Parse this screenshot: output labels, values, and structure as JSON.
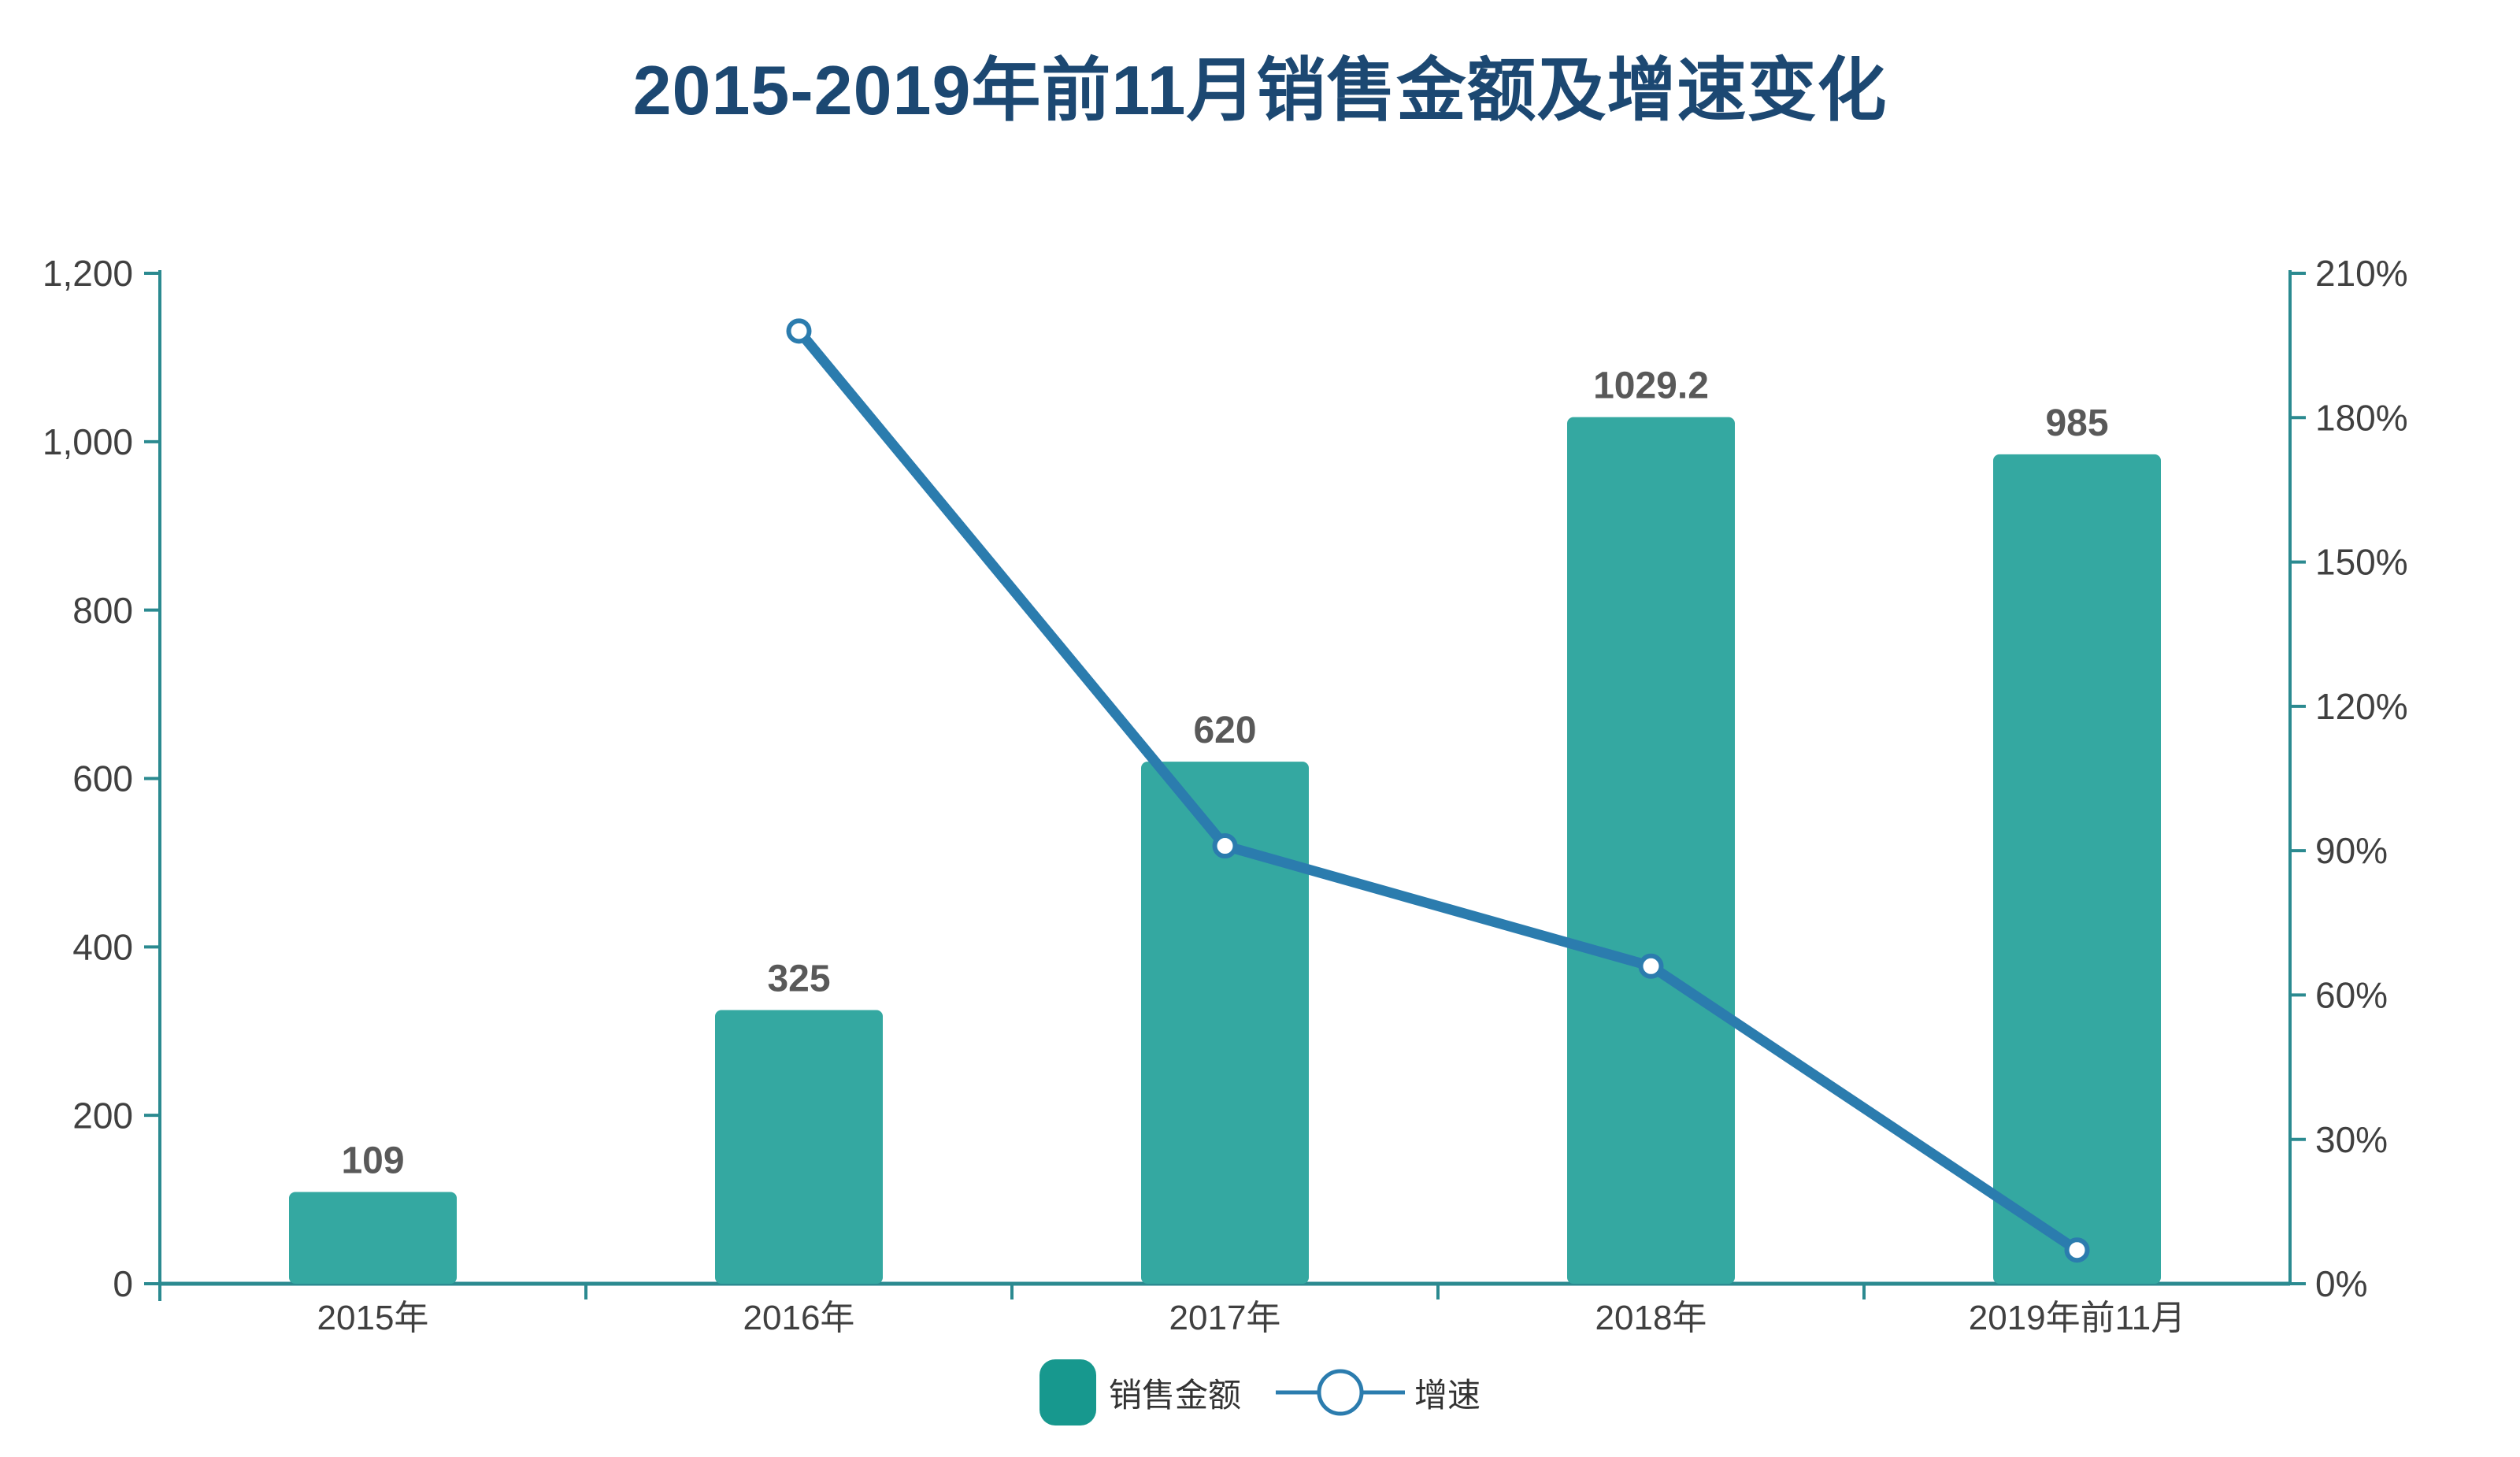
{
  "title": "2015-2019年前11月销售金额及增速变化",
  "legend": {
    "bar_label": "销售金额",
    "line_label": "增速"
  },
  "colors": {
    "title": "#1c4872",
    "axis_line": "#2b8a90",
    "axis_text": "#404040",
    "bar_fill": "#34a8a1",
    "bar_value_label": "#595959",
    "line_stroke": "#2b7cae",
    "marker_fill": "#ffffff",
    "legend_swatch": "#17988e",
    "legend_text": "#333333"
  },
  "chart_data": {
    "type": "bar",
    "combo": "bar+line",
    "title": "2015-2019年前11月销售金额及增速变化",
    "categories": [
      "2015年",
      "2016年",
      "2017年",
      "2018年",
      "2019年前11月"
    ],
    "series": [
      {
        "name": "销售金额",
        "type": "bar",
        "axis": "left",
        "values": [
          109,
          325,
          620,
          1029.2,
          985
        ],
        "value_labels": [
          "109",
          "325",
          "620",
          "1029.2",
          "985"
        ]
      },
      {
        "name": "增速",
        "type": "line",
        "axis": "right",
        "unit": "%",
        "values": [
          null,
          198,
          91,
          66,
          7
        ]
      }
    ],
    "left_axis": {
      "min": 0,
      "max": 1200,
      "step": 200,
      "tick_labels": [
        "0",
        "200",
        "400",
        "600",
        "800",
        "1,000",
        "1,200"
      ]
    },
    "right_axis": {
      "min": 0,
      "max": 210,
      "step": 30,
      "tick_labels": [
        "0%",
        "30%",
        "60%",
        "90%",
        "120%",
        "150%",
        "180%",
        "210%"
      ]
    },
    "grid": false,
    "legend_position": "bottom",
    "xlabel": "",
    "ylabel": ""
  }
}
